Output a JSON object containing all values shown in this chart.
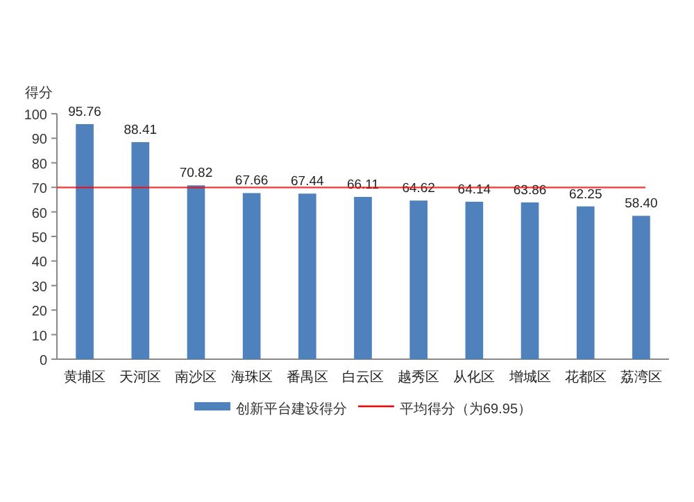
{
  "chart_data": {
    "type": "bar",
    "ylabel": "得分",
    "categories": [
      "黄埔区",
      "天河区",
      "南沙区",
      "海珠区",
      "番禺区",
      "白云区",
      "越秀区",
      "从化区",
      "增城区",
      "花都区",
      "荔湾区"
    ],
    "series": [
      {
        "name": "创新平台建设得分",
        "color": "#4f81bd",
        "values": [
          95.76,
          88.41,
          70.82,
          67.66,
          67.44,
          66.11,
          64.62,
          64.14,
          63.86,
          62.25,
          58.4
        ]
      }
    ],
    "value_labels": [
      "95.76",
      "88.41",
      "70.82",
      "67.66",
      "67.44",
      "66.11",
      "64.62",
      "64.14",
      "63.86",
      "62.25",
      "58.40"
    ],
    "ref_lines": [
      {
        "axis": "y",
        "value": 69.95,
        "label": "平均得分（为69.95）",
        "color": "#ff0000"
      }
    ],
    "ylim": [
      0,
      100
    ],
    "yticks": [
      0,
      10,
      20,
      30,
      40,
      50,
      60,
      70,
      80,
      90,
      100
    ],
    "legend": "bottom"
  }
}
